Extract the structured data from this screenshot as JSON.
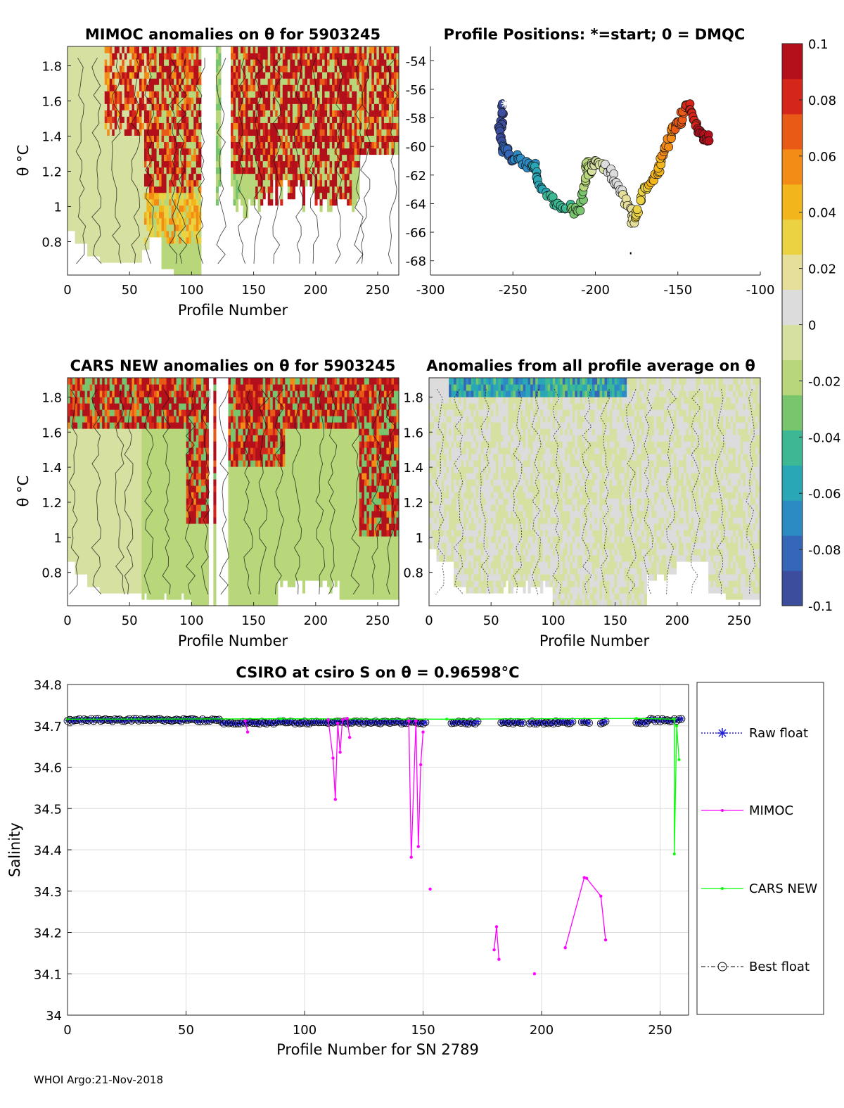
{
  "footer": "WHOI Argo:21-Nov-2018",
  "colors": {
    "mimoc": "#ff00ff",
    "cars": "#00ff00",
    "raw": "#1f1fd6",
    "best": "#000000",
    "grid": "#dcdcdc",
    "cmap": [
      "#3b4d9c",
      "#3567b8",
      "#2d8bc4",
      "#29a7b6",
      "#3cb894",
      "#78c56e",
      "#b7d77a",
      "#d6e0a0",
      "#dcdcdc",
      "#e6df9c",
      "#ead243",
      "#f2b51c",
      "#f38b17",
      "#ea5a17",
      "#d4261a",
      "#b3101b"
    ]
  },
  "chart_data": [
    {
      "id": "mimoc_anom",
      "type": "heatmap",
      "title": "MIMOC anomalies on θ  for 5903245",
      "xlabel": "Profile Number",
      "ylabel": "θ °C",
      "xlim": [
        0,
        267
      ],
      "ylim": [
        0.61,
        1.91
      ],
      "xticks": [
        "0",
        "50",
        "100",
        "150",
        "200",
        "250"
      ],
      "xtick_values": [
        0,
        50,
        100,
        150,
        200,
        250
      ],
      "yticks": [
        "0.8",
        "1",
        "1.2",
        "1.4",
        "1.6",
        "1.8"
      ],
      "ytick_values": [
        0.8,
        1.0,
        1.2,
        1.4,
        1.6,
        1.8
      ],
      "pattern": "mimoc"
    },
    {
      "id": "positions",
      "type": "scatter",
      "title": "Profile Positions: *=start; 0 = DMQC",
      "xlim": [
        -300,
        -100
      ],
      "ylim": [
        -69,
        -53
      ],
      "xticks": [
        "-300",
        "-250",
        "-200",
        "-150",
        "-100"
      ],
      "xtick_values": [
        -300,
        -250,
        -200,
        -150,
        -100
      ],
      "yticks": [
        "-54",
        "-56",
        "-58",
        "-60",
        "-62",
        "-64",
        "-66",
        "-68"
      ],
      "ytick_values": [
        -54,
        -56,
        -58,
        -60,
        -62,
        -64,
        -66,
        -68
      ],
      "track": [
        [
          -256,
          -57.0
        ],
        [
          -257,
          -58.0
        ],
        [
          -258,
          -58.9
        ],
        [
          -257,
          -59.7
        ],
        [
          -255,
          -60.3
        ],
        [
          -253,
          -60.5
        ],
        [
          -250,
          -60.8
        ],
        [
          -246,
          -60.9
        ],
        [
          -242,
          -61.2
        ],
        [
          -238,
          -61.3
        ],
        [
          -236,
          -61.5
        ],
        [
          -235,
          -62.2
        ],
        [
          -232,
          -63.1
        ],
        [
          -228,
          -63.6
        ],
        [
          -224,
          -64.0
        ],
        [
          -220,
          -64.2
        ],
        [
          -215,
          -64.3
        ],
        [
          -212,
          -64.6
        ],
        [
          -209,
          -64.2
        ],
        [
          -207,
          -63.1
        ],
        [
          -206,
          -62.0
        ],
        [
          -205,
          -61.0
        ],
        [
          -204,
          -61.9
        ],
        [
          -202,
          -61.4
        ],
        [
          -199,
          -61.2
        ],
        [
          -196,
          -61.3
        ],
        [
          -192,
          -61.6
        ],
        [
          -189,
          -62.2
        ],
        [
          -186,
          -62.9
        ],
        [
          -183,
          -63.6
        ],
        [
          -180,
          -64.0
        ],
        [
          -178,
          -65.0
        ],
        [
          -176,
          -65.3
        ],
        [
          -174,
          -64.2
        ],
        [
          -171,
          -63.2
        ],
        [
          -168,
          -62.6
        ],
        [
          -165,
          -62.2
        ],
        [
          -162,
          -61.9
        ],
        [
          -160,
          -61.0
        ],
        [
          -158,
          -60.3
        ],
        [
          -156,
          -59.5
        ],
        [
          -153,
          -59.0
        ],
        [
          -151,
          -58.6
        ],
        [
          -149,
          -58.2
        ],
        [
          -147,
          -57.6
        ],
        [
          -145,
          -57.0
        ],
        [
          -142,
          -57.5
        ],
        [
          -140,
          -58.2
        ],
        [
          -138,
          -58.8
        ],
        [
          -136,
          -59.3
        ],
        [
          -134,
          -59.2
        ],
        [
          -131,
          -59.7
        ]
      ],
      "start": [
        -256,
        -57.0
      ],
      "outlier": [
        -179,
        -67.4
      ]
    },
    {
      "id": "colorbar",
      "type": "colorbar",
      "ticks": [
        "0.1",
        "0.08",
        "0.06",
        "0.04",
        "0.02",
        "0",
        "-0.02",
        "-0.04",
        "-0.06",
        "-0.08",
        "-0.1"
      ],
      "range": [
        -0.1,
        0.1
      ]
    },
    {
      "id": "cars_anom",
      "type": "heatmap",
      "title": "CARS NEW anomalies on θ for 5903245",
      "xlabel": "Profile Number",
      "ylabel": "θ °C",
      "xlim": [
        0,
        267
      ],
      "ylim": [
        0.61,
        1.91
      ],
      "xticks": [
        "0",
        "50",
        "100",
        "150",
        "200",
        "250"
      ],
      "xtick_values": [
        0,
        50,
        100,
        150,
        200,
        250
      ],
      "yticks": [
        "0.8",
        "1",
        "1.2",
        "1.4",
        "1.6",
        "1.8"
      ],
      "ytick_values": [
        0.8,
        1.0,
        1.2,
        1.4,
        1.6,
        1.8
      ],
      "pattern": "cars"
    },
    {
      "id": "avg_anom",
      "type": "heatmap",
      "title": "Anomalies from all profile average on θ",
      "xlabel": "Profile Number",
      "xlim": [
        0,
        267
      ],
      "ylim": [
        0.61,
        1.91
      ],
      "xticks": [
        "0",
        "50",
        "100",
        "150",
        "200",
        "250"
      ],
      "xtick_values": [
        0,
        50,
        100,
        150,
        200,
        250
      ],
      "yticks": [
        "0.8",
        "1",
        "1.2",
        "1.4",
        "1.6",
        "1.8"
      ],
      "ytick_values": [
        0.8,
        1.0,
        1.2,
        1.4,
        1.6,
        1.8
      ],
      "pattern": "avg"
    },
    {
      "id": "salinity",
      "type": "line",
      "title": "CSIRO at csiro S on θ = 0.96598°C",
      "xlabel": "Profile Number for SN 2789",
      "ylabel": "Salinity",
      "xlim": [
        0,
        262
      ],
      "ylim": [
        34.0,
        34.8
      ],
      "xticks": [
        "0",
        "50",
        "100",
        "150",
        "200",
        "250"
      ],
      "xtick_values": [
        0,
        50,
        100,
        150,
        200,
        250
      ],
      "yticks": [
        "34",
        "34.1",
        "34.2",
        "34.3",
        "34.4",
        "34.5",
        "34.6",
        "34.7",
        "34.8"
      ],
      "ytick_values": [
        34.0,
        34.1,
        34.2,
        34.3,
        34.4,
        34.5,
        34.6,
        34.7,
        34.8
      ],
      "legend": [
        "Raw float",
        "MIMOC",
        "CARS NEW",
        "Best float"
      ],
      "mimoc_segments": [
        [
          [
            75,
            34.712
          ],
          [
            76,
            34.685
          ]
        ],
        [
          [
            110,
            34.715
          ],
          [
            112,
            34.622
          ],
          [
            113,
            34.522
          ],
          [
            114,
            34.706
          ]
        ],
        [
          [
            114,
            34.706
          ],
          [
            115,
            34.636
          ],
          [
            116,
            34.715
          ],
          [
            118,
            34.718
          ],
          [
            119,
            34.672
          ]
        ],
        [
          [
            144,
            34.712
          ],
          [
            145,
            34.382
          ],
          [
            147,
            34.712
          ]
        ],
        [
          [
            147,
            34.712
          ],
          [
            148,
            34.408
          ],
          [
            149,
            34.606
          ],
          [
            150,
            34.685
          ]
        ],
        [
          [
            153,
            34.305
          ]
        ],
        [
          [
            180,
            34.158
          ],
          [
            181,
            34.214
          ],
          [
            182,
            34.135
          ]
        ],
        [
          [
            197,
            34.1
          ]
        ],
        [
          [
            210,
            34.163
          ],
          [
            218,
            34.333
          ],
          [
            219,
            34.331
          ],
          [
            225,
            34.288
          ],
          [
            227,
            34.182
          ]
        ]
      ],
      "cars_segments": [
        [
          [
            0,
            34.716
          ],
          [
            90,
            34.717
          ],
          [
            160,
            34.716
          ],
          [
            240,
            34.718
          ],
          [
            256,
            34.716
          ]
        ],
        [
          [
            256,
            34.716
          ],
          [
            256,
            34.39
          ],
          [
            257,
            34.7
          ],
          [
            258,
            34.618
          ]
        ]
      ],
      "float_level": 34.708,
      "float_level_early": 34.714
    }
  ]
}
